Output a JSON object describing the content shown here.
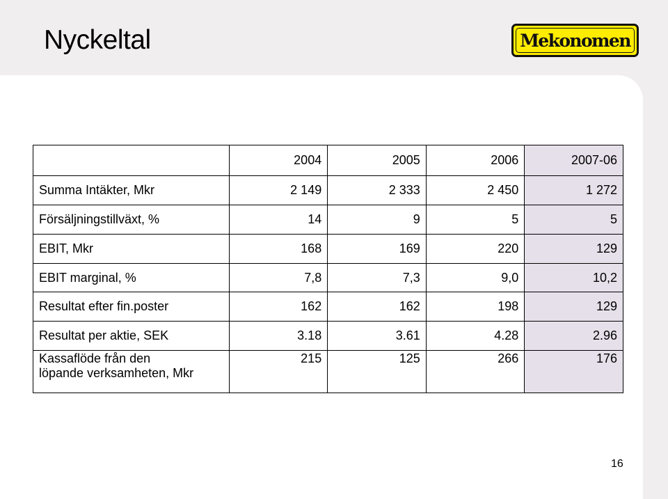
{
  "slide": {
    "title": "Nyckeltal",
    "logo_text": "Mekonomen",
    "page_number": "16"
  },
  "table": {
    "header": [
      "",
      "2004",
      "2005",
      "2006",
      "2007-06"
    ],
    "rows": [
      {
        "label": "Summa Intäkter, Mkr",
        "values": [
          "2 149",
          "2 333",
          "2 450",
          "1 272"
        ]
      },
      {
        "label": "Försäljningstillväxt, %",
        "values": [
          "14",
          "9",
          "5",
          "5"
        ]
      },
      {
        "label": "EBIT, Mkr",
        "values": [
          "168",
          "169",
          "220",
          "129"
        ]
      },
      {
        "label": "EBIT marginal, %",
        "values": [
          "7,8",
          "7,3",
          "9,0",
          "10,2"
        ]
      },
      {
        "label": "Resultat efter fin.poster",
        "values": [
          "162",
          "162",
          "198",
          "129"
        ]
      },
      {
        "label": "Resultat per aktie, SEK",
        "values": [
          "3.18",
          "3.61",
          "4.28",
          "2.96"
        ]
      },
      {
        "label_line1": "Kassaflöde från den",
        "label_line2": "löpande verksamheten, Mkr",
        "values": [
          "215",
          "125",
          "266",
          "176"
        ]
      }
    ]
  },
  "colors": {
    "background": "#f0eeee",
    "panel": "#ffffff",
    "highlight_column": "#e6e0ea",
    "logo_yellow": "#ffec00"
  }
}
